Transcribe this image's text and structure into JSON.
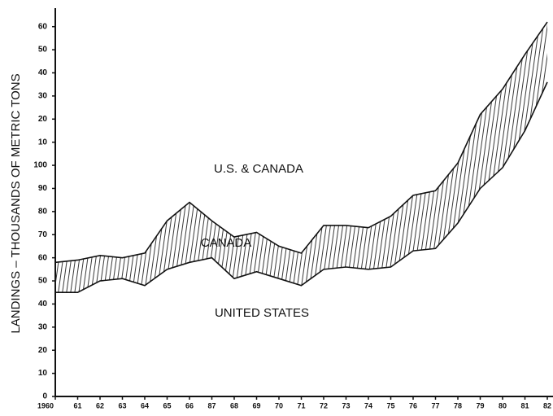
{
  "chart_data": {
    "type": "band",
    "y_label": "LANDINGS – THOUSANDS OF METRIC TONS",
    "categories": [
      "1960",
      "61",
      "62",
      "63",
      "64",
      "65",
      "66",
      "87",
      "68",
      "69",
      "70",
      "71",
      "72",
      "73",
      "74",
      "75",
      "76",
      "77",
      "78",
      "79",
      "80",
      "81",
      "82"
    ],
    "series": [
      {
        "name": "UNITED STATES",
        "color": "#111111",
        "values": [
          45,
          45,
          50,
          51,
          48,
          55,
          58,
          60,
          51,
          54,
          51,
          48,
          55,
          56,
          55,
          56,
          63,
          64,
          75,
          90,
          99,
          115,
          136
        ]
      },
      {
        "name": "U.S. & CANADA",
        "color": "#111111",
        "values": [
          58,
          59,
          61,
          60,
          62,
          76,
          84,
          76,
          69,
          71,
          65,
          62,
          74,
          74,
          73,
          78,
          87,
          89,
          101,
          122,
          133,
          148,
          162
        ]
      }
    ],
    "annotations": [
      "CANADA"
    ],
    "ylim": [
      0,
      168
    ],
    "yticks": [
      0,
      10,
      20,
      30,
      40,
      50,
      60,
      70,
      80,
      90,
      100,
      {
        "value": 110,
        "label": "10"
      },
      {
        "value": 120,
        "label": "20"
      },
      {
        "value": 130,
        "label": "30"
      },
      {
        "value": 140,
        "label": "40"
      },
      {
        "value": 150,
        "label": "50"
      },
      {
        "value": 160,
        "label": "60"
      }
    ]
  }
}
